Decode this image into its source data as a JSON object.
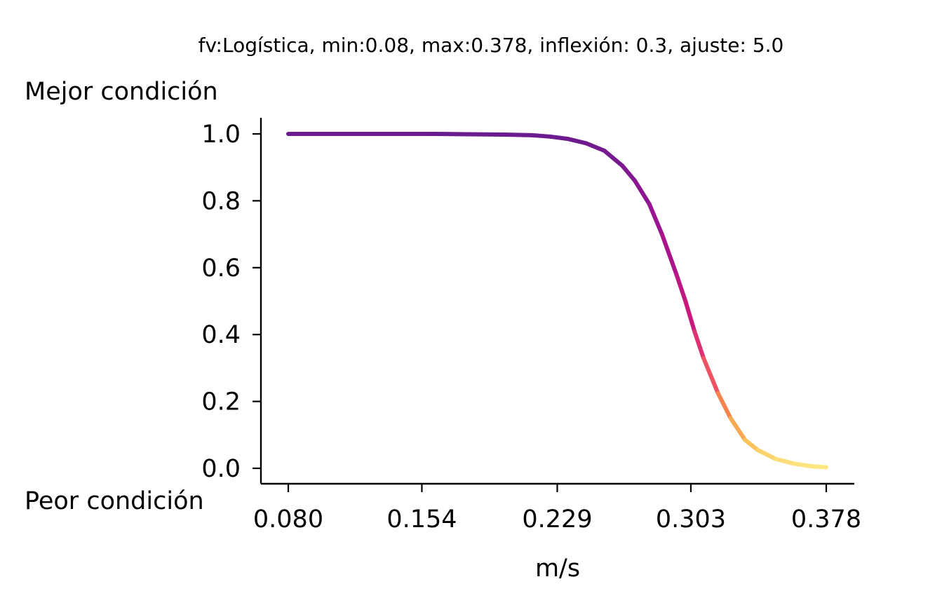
{
  "chart_data": {
    "type": "line",
    "title": "fv:Logística, min:0.08, max:0.378, inflexión: 0.3, ajuste: 5.0",
    "xlabel": "m/s",
    "ylabel": "",
    "top_label": "Mejor condición",
    "bottom_label": "Peor condición",
    "xlim": [
      0.08,
      0.378
    ],
    "ylim": [
      0.0,
      1.0
    ],
    "x_ticks": [
      0.08,
      0.154,
      0.229,
      0.303,
      0.378
    ],
    "x_tick_labels": [
      "0.080",
      "0.154",
      "0.229",
      "0.303",
      "0.378"
    ],
    "y_ticks": [
      0.0,
      0.2,
      0.4,
      0.6,
      0.8,
      1.0
    ],
    "y_tick_labels": [
      "0.0",
      "0.2",
      "0.4",
      "0.6",
      "0.8",
      "1.0"
    ],
    "grid": false,
    "colormap": "plasma",
    "colormap_range": [
      "#6a1b8f",
      "#fde883"
    ],
    "series": [
      {
        "x": [
          0.08,
          0.12,
          0.16,
          0.18,
          0.2,
          0.215,
          0.225,
          0.235,
          0.245,
          0.255,
          0.265,
          0.272,
          0.28,
          0.287,
          0.295,
          0.3,
          0.305,
          0.31,
          0.318,
          0.325,
          0.333,
          0.34,
          0.35,
          0.36,
          0.37,
          0.378
        ],
        "values": [
          1.0,
          1.0,
          1.0,
          0.999,
          0.998,
          0.996,
          0.992,
          0.985,
          0.972,
          0.95,
          0.905,
          0.86,
          0.79,
          0.7,
          0.58,
          0.5,
          0.41,
          0.33,
          0.225,
          0.15,
          0.085,
          0.055,
          0.028,
          0.014,
          0.006,
          0.003
        ]
      }
    ]
  }
}
